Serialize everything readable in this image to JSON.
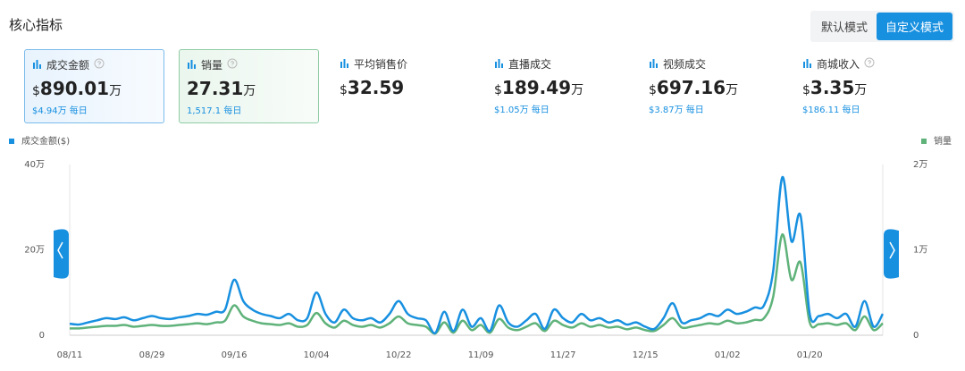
{
  "header": {
    "title": "核心指标",
    "modes": [
      "默认模式",
      "自定义模式"
    ]
  },
  "cards": [
    {
      "label": "成交金额",
      "currency": "$",
      "amount": "890.01",
      "unit": "万",
      "daily": "$4.94万 每日",
      "help": true
    },
    {
      "label": "销量",
      "currency": "",
      "amount": "27.31",
      "unit": "万",
      "daily": "1,517.1 每日",
      "help": true
    },
    {
      "label": "平均销售价",
      "currency": "$",
      "amount": "32.59",
      "unit": "",
      "daily": "",
      "help": false
    },
    {
      "label": "直播成交",
      "currency": "$",
      "amount": "189.49",
      "unit": "万",
      "daily": "$1.05万 每日",
      "help": false
    },
    {
      "label": "视频成交",
      "currency": "$",
      "amount": "697.16",
      "unit": "万",
      "daily": "$3.87万 每日",
      "help": false
    },
    {
      "label": "商城收入",
      "currency": "$",
      "amount": "3.35",
      "unit": "万",
      "daily": "$186.11 每日",
      "help": true
    }
  ],
  "chart_data": {
    "type": "line",
    "categories": [
      "08/11",
      null,
      null,
      null,
      null,
      null,
      null,
      null,
      null,
      "08/29",
      null,
      null,
      null,
      null,
      null,
      null,
      null,
      null,
      "09/16",
      null,
      null,
      null,
      null,
      null,
      null,
      null,
      null,
      "10/04",
      null,
      null,
      null,
      null,
      null,
      null,
      null,
      null,
      "10/22",
      null,
      null,
      null,
      null,
      null,
      null,
      null,
      null,
      "11/09",
      null,
      null,
      null,
      null,
      null,
      null,
      null,
      null,
      "11/27",
      null,
      null,
      null,
      null,
      null,
      null,
      null,
      null,
      "12/15",
      null,
      null,
      null,
      null,
      null,
      null,
      null,
      null,
      "01/02",
      null,
      null,
      null,
      null,
      null,
      null,
      null,
      null,
      "01/20",
      null,
      null,
      null,
      null,
      null,
      null,
      null,
      null
    ],
    "series": [
      {
        "name": "成交金额($)",
        "color": "#1890e0",
        "axis": "y",
        "values": [
          2.7,
          2.5,
          3,
          3.5,
          4,
          3.8,
          4.2,
          3.5,
          4,
          4.5,
          4,
          3.8,
          4.2,
          4.5,
          5,
          4.8,
          5.5,
          6,
          13,
          8,
          6,
          5,
          4.5,
          4,
          5,
          3.5,
          4,
          10,
          5,
          3,
          6,
          4,
          3.5,
          4,
          3,
          5,
          8,
          5,
          4,
          3.5,
          0.5,
          5.5,
          1,
          6,
          2,
          4,
          1,
          7,
          3,
          2,
          3.5,
          5,
          1.5,
          6,
          4,
          3,
          5,
          3.5,
          4,
          3,
          3.5,
          2.5,
          3,
          2,
          1.5,
          4,
          7.5,
          3,
          3.5,
          4,
          5,
          4.5,
          6,
          5,
          5.5,
          6.5,
          7,
          15,
          37,
          22,
          28,
          5,
          4.5,
          5,
          4,
          5,
          2,
          8,
          2,
          5
        ]
      },
      {
        "name": "销量",
        "color": "#5fb27a",
        "axis": "y2",
        "values": [
          0.08,
          0.08,
          0.09,
          0.1,
          0.11,
          0.11,
          0.12,
          0.1,
          0.11,
          0.12,
          0.11,
          0.11,
          0.12,
          0.13,
          0.14,
          0.13,
          0.15,
          0.17,
          0.35,
          0.22,
          0.17,
          0.14,
          0.13,
          0.12,
          0.14,
          0.1,
          0.12,
          0.26,
          0.14,
          0.09,
          0.17,
          0.12,
          0.1,
          0.12,
          0.09,
          0.14,
          0.22,
          0.14,
          0.12,
          0.1,
          0.02,
          0.15,
          0.03,
          0.17,
          0.06,
          0.12,
          0.03,
          0.19,
          0.09,
          0.06,
          0.1,
          0.14,
          0.05,
          0.17,
          0.12,
          0.09,
          0.14,
          0.1,
          0.12,
          0.09,
          0.1,
          0.07,
          0.09,
          0.06,
          0.05,
          0.12,
          0.2,
          0.09,
          0.1,
          0.12,
          0.14,
          0.13,
          0.17,
          0.14,
          0.15,
          0.18,
          0.2,
          0.45,
          1.18,
          0.65,
          0.85,
          0.15,
          0.13,
          0.14,
          0.12,
          0.14,
          0.06,
          0.22,
          0.06,
          0.14
        ]
      }
    ],
    "ylim": [
      0,
      40
    ],
    "yticks": [
      0,
      {
        "value": 20,
        "label": "20万"
      },
      {
        "value": 40,
        "label": "40万"
      }
    ],
    "y2lim": [
      0,
      2
    ],
    "y2ticks": [
      0,
      {
        "value": 1,
        "label": "1万"
      },
      {
        "value": 2,
        "label": "2万"
      }
    ],
    "grid": false
  }
}
